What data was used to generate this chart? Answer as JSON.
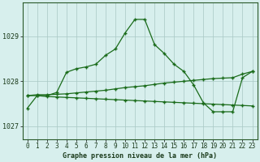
{
  "title": "Graphe pression niveau de la mer (hPa)",
  "bg_color": "#d7efed",
  "line_color": "#1a6b1a",
  "yticks": [
    1027,
    1028,
    1029
  ],
  "ylim": [
    1026.7,
    1029.75
  ],
  "xlim": [
    -0.5,
    23.5
  ],
  "line_peak": [
    1027.4,
    1027.68,
    1027.68,
    1027.75,
    1028.2,
    1028.28,
    1028.32,
    1028.38,
    1028.58,
    1028.72,
    1029.08,
    1029.38,
    1029.38,
    1028.82,
    1028.62,
    1028.38,
    1028.22,
    1027.92,
    1027.52,
    1027.32,
    1027.32,
    1027.32,
    1028.08,
    1028.22
  ],
  "line_rise": [
    1027.68,
    1027.7,
    1027.7,
    1027.71,
    1027.72,
    1027.74,
    1027.76,
    1027.78,
    1027.8,
    1027.83,
    1027.86,
    1027.88,
    1027.9,
    1027.93,
    1027.96,
    1027.98,
    1028.0,
    1028.02,
    1028.04,
    1028.06,
    1028.07,
    1028.08,
    1028.16,
    1028.22
  ],
  "line_decline": [
    1027.68,
    1027.68,
    1027.66,
    1027.65,
    1027.64,
    1027.63,
    1027.62,
    1027.61,
    1027.6,
    1027.59,
    1027.58,
    1027.57,
    1027.56,
    1027.55,
    1027.54,
    1027.53,
    1027.52,
    1027.51,
    1027.5,
    1027.49,
    1027.48,
    1027.47,
    1027.46,
    1027.45
  ],
  "xlabel_fontsize": 5.5,
  "ylabel_fontsize": 6,
  "title_fontsize": 6.0
}
